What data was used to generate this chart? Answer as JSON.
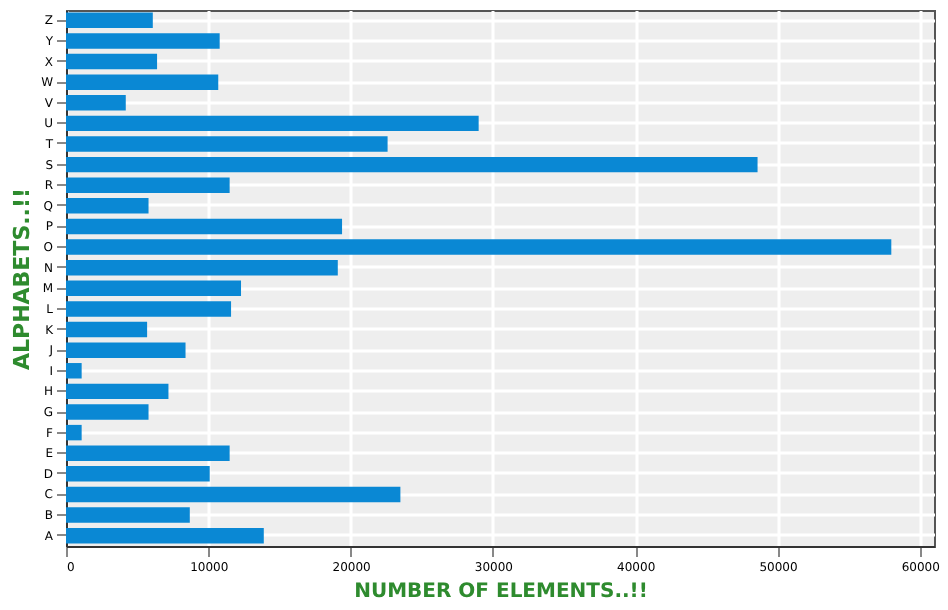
{
  "chart_data": {
    "type": "bar",
    "orientation": "horizontal",
    "xlabel": "NUMBER OF ELEMENTS..!!",
    "ylabel": "ALPHABETS..!!",
    "categories": [
      "Z",
      "Y",
      "X",
      "W",
      "V",
      "U",
      "T",
      "S",
      "R",
      "Q",
      "P",
      "O",
      "N",
      "M",
      "L",
      "K",
      "J",
      "I",
      "H",
      "G",
      "F",
      "E",
      "D",
      "C",
      "B",
      "A"
    ],
    "values": [
      6100,
      10800,
      6400,
      10700,
      4200,
      29000,
      22600,
      48600,
      11500,
      5800,
      19400,
      58000,
      19100,
      12300,
      11600,
      5700,
      8400,
      1100,
      7200,
      5800,
      1100,
      11500,
      10100,
      23500,
      8700,
      13900
    ],
    "color": "#0a88d4",
    "xlim": [
      0,
      61000
    ],
    "xticks": [
      0,
      10000,
      20000,
      30000,
      40000,
      50000,
      60000
    ],
    "grid": true
  }
}
